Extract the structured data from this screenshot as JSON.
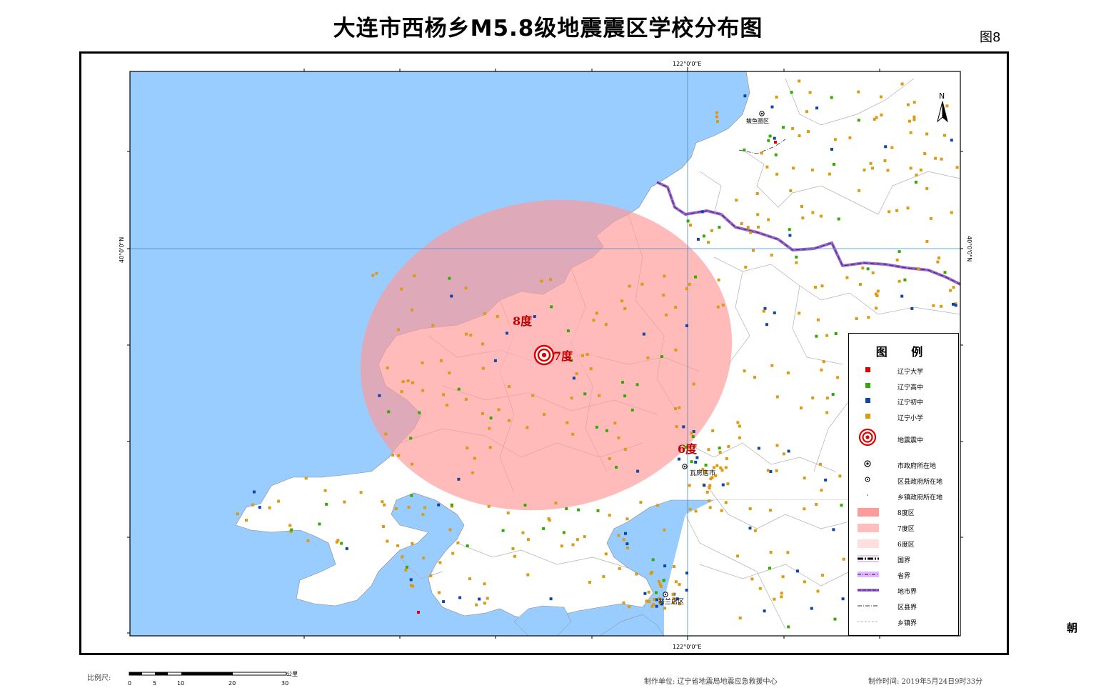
{
  "header": {
    "title": "大连市西杨乡M5.8级地震震区学校分布图",
    "figure_label": "图8"
  },
  "map": {
    "lon_label_top": "122°0'0\"E",
    "lon_label_bottom": "122°0'0\"E",
    "lat_label_left": "40°0'0\"N",
    "lat_label_right": "40°0'0\"N",
    "north_label": "N",
    "edge_label": "朝",
    "places": {
      "bayuquan": "鲅鱼圈区",
      "wafangdian": "瓦房店市",
      "pulandian": "普兰店区"
    },
    "intensity_labels": {
      "i8": "8度",
      "i7": "7度",
      "i6": "6度"
    },
    "colors": {
      "sea": "#99ccff",
      "land": "#ffffff",
      "zone8": "#ff9a9a",
      "zone7": "#ffbdbd",
      "zone6": "#ffdede",
      "school_university": "#e00000",
      "school_high": "#33aa00",
      "school_middle": "#1144aa",
      "school_primary": "#dd9911"
    }
  },
  "legend": {
    "title": "图 例",
    "items": [
      {
        "label": "辽宁大学",
        "icon": "red-square-icon"
      },
      {
        "label": "辽宁高中",
        "icon": "green-square-icon"
      },
      {
        "label": "辽宁初中",
        "icon": "blue-square-icon"
      },
      {
        "label": "辽宁小学",
        "icon": "orange-square-icon"
      },
      {
        "label": "地震震中",
        "icon": "epicenter-icon"
      },
      {
        "label": "市政府所在地",
        "icon": "city-seat-icon"
      },
      {
        "label": "区县政府所在地",
        "icon": "county-seat-icon"
      },
      {
        "label": "乡镇政府所在地",
        "icon": "town-seat-icon"
      },
      {
        "label": "8度区",
        "icon": "zone8-swatch"
      },
      {
        "label": "7度区",
        "icon": "zone7-swatch"
      },
      {
        "label": "6度区",
        "icon": "zone6-swatch"
      },
      {
        "label": "国界",
        "icon": "national-border-icon"
      },
      {
        "label": "省界",
        "icon": "provincial-border-icon"
      },
      {
        "label": "地市界",
        "icon": "prefecture-border-icon"
      },
      {
        "label": "区县界",
        "icon": "county-border-icon"
      },
      {
        "label": "乡镇界",
        "icon": "township-border-icon"
      }
    ]
  },
  "scale_bar": {
    "label": "比例尺:",
    "unit": "公里",
    "ticks": [
      "0",
      "5",
      "10",
      "20",
      "30"
    ]
  },
  "footer": {
    "producer": "制作单位: 辽宁省地震局地震应急救援中心",
    "time": "制作时间: 2019年5月24日9时33分"
  }
}
